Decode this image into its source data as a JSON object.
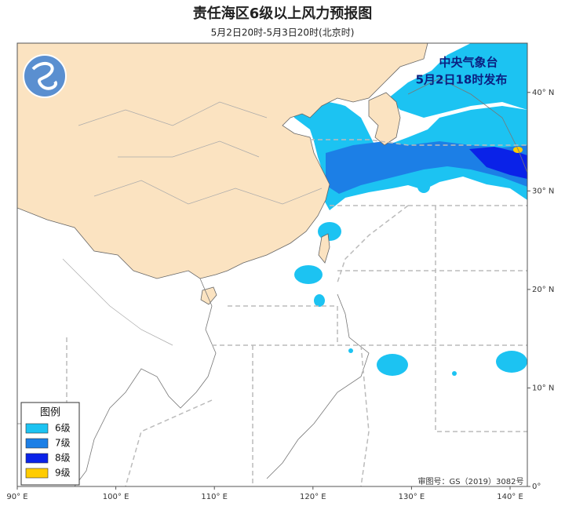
{
  "title": "责任海区6级以上风力预报图",
  "subtitle": "5月2日20时-5月3日20时(北京时)",
  "issuer": {
    "name": "中央气象台",
    "time": "5月2日18时发布"
  },
  "legend": {
    "title": "图例",
    "items": [
      {
        "label": "6级",
        "color": "#1cc3f2"
      },
      {
        "label": "7级",
        "color": "#1c7fe6"
      },
      {
        "label": "8级",
        "color": "#0a22e8"
      },
      {
        "label": "9级",
        "color": "#ffcc00"
      }
    ]
  },
  "map": {
    "lonlim": [
      90,
      141.75
    ],
    "latlim": [
      0,
      45
    ],
    "lon_ticks": [
      {
        "value": 90,
        "label": "90° E"
      },
      {
        "value": 100,
        "label": "100° E"
      },
      {
        "value": 110,
        "label": "110° E"
      },
      {
        "value": 120,
        "label": "120° E"
      },
      {
        "value": 130,
        "label": "130° E"
      },
      {
        "value": 140,
        "label": "140° E"
      }
    ],
    "lat_ticks": [
      {
        "value": 0,
        "label": "0°"
      },
      {
        "value": 10,
        "label": "10° N"
      },
      {
        "value": 20,
        "label": "20° N"
      },
      {
        "value": 30,
        "label": "30° N"
      },
      {
        "value": 40,
        "label": "40° N"
      }
    ]
  },
  "review_number": "审图号：GS（2019）3082号"
}
